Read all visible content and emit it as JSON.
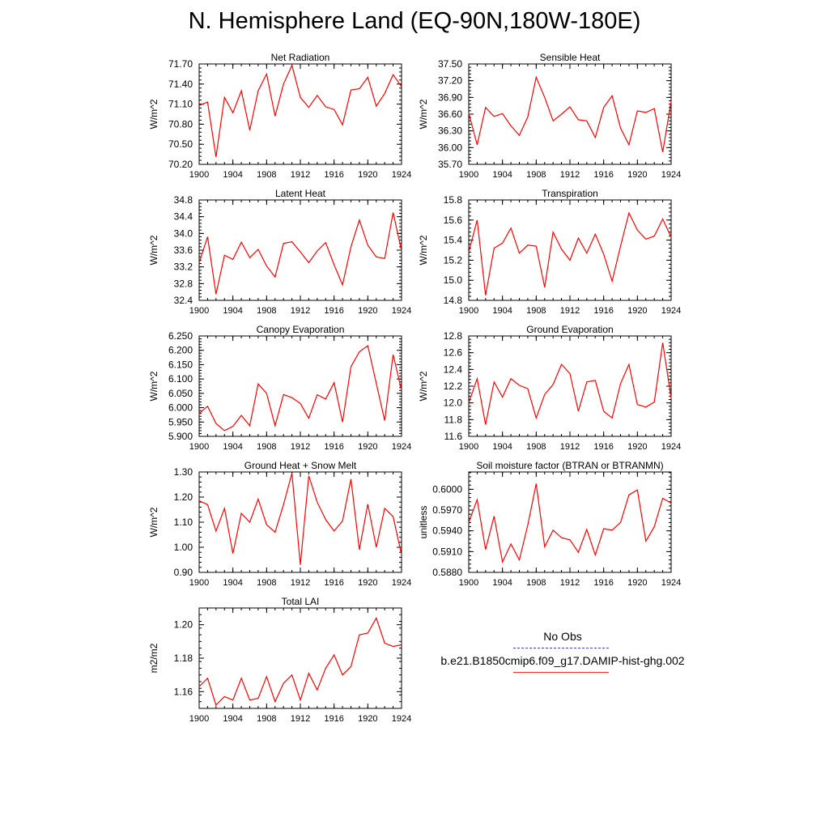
{
  "page": {
    "title": "N. Hemisphere Land (EQ-90N,180W-180E)"
  },
  "legend": {
    "entries": [
      {
        "label": "No Obs",
        "style": "dashed",
        "color": "#3c3cd0"
      },
      {
        "label": "b.e21.B1850cmip6.f09_g17.DAMIP-hist-ghg.002",
        "style": "solid",
        "color": "#ff2a2a"
      }
    ]
  },
  "chart_data": [
    {
      "type": "line",
      "title": "Net Radiation",
      "ylabel": "W/m^2",
      "ylim": [
        70.2,
        71.7
      ],
      "yticks": [
        "70.20",
        "70.50",
        "70.80",
        "71.10",
        "71.40",
        "71.70"
      ],
      "xlim": [
        1900,
        1924
      ],
      "xticks": [
        "1900",
        "1904",
        "1908",
        "1912",
        "1916",
        "1920",
        "1924"
      ],
      "series": [
        {
          "color": "#ff0000",
          "x": [
            1900,
            1901,
            1902,
            1903,
            1904,
            1905,
            1906,
            1907,
            1908,
            1909,
            1910,
            1911,
            1912,
            1913,
            1914,
            1915,
            1916,
            1917,
            1918,
            1919,
            1920,
            1921,
            1922,
            1923,
            1924
          ],
          "y": [
            71.08,
            71.13,
            70.31,
            71.2,
            70.97,
            71.3,
            70.71,
            71.3,
            71.55,
            70.92,
            71.4,
            71.68,
            71.2,
            71.05,
            71.23,
            71.06,
            71.02,
            70.79,
            71.31,
            71.33,
            71.5,
            71.07,
            71.26,
            71.54,
            71.36
          ]
        }
      ]
    },
    {
      "type": "line",
      "title": "Sensible Heat",
      "ylabel": "W/m^2",
      "ylim": [
        35.7,
        37.5
      ],
      "yticks": [
        "35.70",
        "36.00",
        "36.30",
        "36.60",
        "36.90",
        "37.20",
        "37.50"
      ],
      "xlim": [
        1900,
        1924
      ],
      "xticks": [
        "1900",
        "1904",
        "1908",
        "1912",
        "1916",
        "1920",
        "1924"
      ],
      "series": [
        {
          "color": "#ff0000",
          "x": [
            1900,
            1901,
            1902,
            1903,
            1904,
            1905,
            1906,
            1907,
            1908,
            1909,
            1910,
            1911,
            1912,
            1913,
            1914,
            1915,
            1916,
            1917,
            1918,
            1919,
            1920,
            1921,
            1922,
            1923,
            1924
          ],
          "y": [
            36.62,
            36.05,
            36.72,
            36.56,
            36.61,
            36.39,
            36.22,
            36.55,
            37.26,
            36.9,
            36.48,
            36.6,
            36.73,
            36.5,
            36.48,
            36.18,
            36.72,
            36.93,
            36.35,
            36.05,
            36.66,
            36.63,
            36.7,
            35.92,
            36.83
          ]
        }
      ]
    },
    {
      "type": "line",
      "title": "Latent Heat",
      "ylabel": "W/m^2",
      "ylim": [
        32.4,
        34.8
      ],
      "yticks": [
        "32.4",
        "32.8",
        "33.2",
        "33.6",
        "34.0",
        "34.4",
        "34.8"
      ],
      "xlim": [
        1900,
        1924
      ],
      "xticks": [
        "1900",
        "1904",
        "1908",
        "1912",
        "1916",
        "1920",
        "1924"
      ],
      "series": [
        {
          "color": "#ff0000",
          "x": [
            1900,
            1901,
            1902,
            1903,
            1904,
            1905,
            1906,
            1907,
            1908,
            1909,
            1910,
            1911,
            1912,
            1913,
            1914,
            1915,
            1916,
            1917,
            1918,
            1919,
            1920,
            1921,
            1922,
            1923,
            1924
          ],
          "y": [
            33.3,
            33.92,
            32.55,
            33.48,
            33.38,
            33.79,
            33.42,
            33.62,
            33.22,
            32.96,
            33.76,
            33.8,
            33.56,
            33.3,
            33.58,
            33.78,
            33.25,
            32.77,
            33.68,
            34.32,
            33.72,
            33.44,
            33.4,
            34.5,
            33.58
          ]
        }
      ]
    },
    {
      "type": "line",
      "title": "Transpiration",
      "ylabel": "W/m^2",
      "ylim": [
        14.8,
        15.8
      ],
      "yticks": [
        "14.8",
        "15.0",
        "15.2",
        "15.4",
        "15.6",
        "15.8"
      ],
      "xlim": [
        1900,
        1924
      ],
      "xticks": [
        "1900",
        "1904",
        "1908",
        "1912",
        "1916",
        "1920",
        "1924"
      ],
      "series": [
        {
          "color": "#ff0000",
          "x": [
            1900,
            1901,
            1902,
            1903,
            1904,
            1905,
            1906,
            1907,
            1908,
            1909,
            1910,
            1911,
            1912,
            1913,
            1914,
            1915,
            1916,
            1917,
            1918,
            1919,
            1920,
            1921,
            1922,
            1923,
            1924
          ],
          "y": [
            15.28,
            15.6,
            14.85,
            15.32,
            15.37,
            15.52,
            15.27,
            15.35,
            15.34,
            14.93,
            15.48,
            15.31,
            15.2,
            15.42,
            15.27,
            15.46,
            15.26,
            14.99,
            15.34,
            15.67,
            15.5,
            15.41,
            15.44,
            15.61,
            15.43
          ]
        }
      ]
    },
    {
      "type": "line",
      "title": "Canopy Evaporation",
      "ylabel": "W/m^2",
      "ylim": [
        5.9,
        6.25
      ],
      "yticks": [
        "5.900",
        "5.950",
        "6.000",
        "6.050",
        "6.100",
        "6.150",
        "6.200",
        "6.250"
      ],
      "xlim": [
        1900,
        1924
      ],
      "xticks": [
        "1900",
        "1904",
        "1908",
        "1912",
        "1916",
        "1920",
        "1924"
      ],
      "series": [
        {
          "color": "#ff0000",
          "x": [
            1900,
            1901,
            1902,
            1903,
            1904,
            1905,
            1906,
            1907,
            1908,
            1909,
            1910,
            1911,
            1912,
            1913,
            1914,
            1915,
            1916,
            1917,
            1918,
            1919,
            1920,
            1921,
            1922,
            1923,
            1924
          ],
          "y": [
            5.98,
            6.005,
            5.945,
            5.92,
            5.935,
            5.973,
            5.937,
            6.083,
            6.05,
            5.937,
            6.046,
            6.035,
            6.015,
            5.963,
            6.045,
            6.03,
            6.087,
            5.95,
            6.143,
            6.195,
            6.216,
            6.085,
            5.955,
            6.185,
            6.06
          ]
        }
      ]
    },
    {
      "type": "line",
      "title": "Ground Evaporation",
      "ylabel": "W/m^2",
      "ylim": [
        11.6,
        12.8
      ],
      "yticks": [
        "11.6",
        "11.8",
        "12.0",
        "12.2",
        "12.4",
        "12.6",
        "12.8"
      ],
      "xlim": [
        1900,
        1924
      ],
      "xticks": [
        "1900",
        "1904",
        "1908",
        "1912",
        "1916",
        "1920",
        "1924"
      ],
      "series": [
        {
          "color": "#ff0000",
          "x": [
            1900,
            1901,
            1902,
            1903,
            1904,
            1905,
            1906,
            1907,
            1908,
            1909,
            1910,
            1911,
            1912,
            1913,
            1914,
            1915,
            1916,
            1917,
            1918,
            1919,
            1920,
            1921,
            1922,
            1923,
            1924
          ],
          "y": [
            12.0,
            12.29,
            11.74,
            12.25,
            12.07,
            12.29,
            12.21,
            12.17,
            11.82,
            12.1,
            12.22,
            12.46,
            12.35,
            11.9,
            12.25,
            12.27,
            11.9,
            11.82,
            12.23,
            12.46,
            11.98,
            11.95,
            12.01,
            12.72,
            12.06
          ]
        }
      ]
    },
    {
      "type": "line",
      "title": "Ground Heat + Snow Melt",
      "ylabel": "W/m^2",
      "ylim": [
        0.9,
        1.3
      ],
      "yticks": [
        "0.90",
        "1.00",
        "1.10",
        "1.20",
        "1.30"
      ],
      "xlim": [
        1900,
        1924
      ],
      "xticks": [
        "1900",
        "1904",
        "1908",
        "1912",
        "1916",
        "1920",
        "1924"
      ],
      "series": [
        {
          "color": "#ff0000",
          "x": [
            1900,
            1901,
            1902,
            1903,
            1904,
            1905,
            1906,
            1907,
            1908,
            1909,
            1910,
            1911,
            1912,
            1913,
            1914,
            1915,
            1916,
            1917,
            1918,
            1919,
            1920,
            1921,
            1922,
            1923,
            1924
          ],
          "y": [
            1.185,
            1.17,
            1.065,
            1.155,
            0.975,
            1.135,
            1.1,
            1.192,
            1.09,
            1.06,
            1.17,
            1.295,
            0.93,
            1.285,
            1.18,
            1.11,
            1.065,
            1.105,
            1.272,
            0.99,
            1.172,
            1.0,
            1.155,
            1.122,
            0.97
          ]
        }
      ]
    },
    {
      "type": "line",
      "title": "Soil moisture factor (BTRAN or BTRANMN)",
      "ylabel": "unitless",
      "ylim": [
        0.588,
        0.6025
      ],
      "yticks": [
        "0.5880",
        "0.5910",
        "0.5940",
        "0.5970",
        "0.6000"
      ],
      "xlim": [
        1900,
        1924
      ],
      "xticks": [
        "1900",
        "1904",
        "1908",
        "1912",
        "1916",
        "1920",
        "1924"
      ],
      "series": [
        {
          "color": "#ff0000",
          "x": [
            1900,
            1901,
            1902,
            1903,
            1904,
            1905,
            1906,
            1907,
            1908,
            1909,
            1910,
            1911,
            1912,
            1913,
            1914,
            1915,
            1916,
            1917,
            1918,
            1919,
            1920,
            1921,
            1922,
            1923,
            1924
          ],
          "y": [
            0.5952,
            0.5985,
            0.5913,
            0.5961,
            0.5895,
            0.5921,
            0.5898,
            0.5948,
            0.6008,
            0.5917,
            0.5941,
            0.593,
            0.5927,
            0.5909,
            0.5942,
            0.5905,
            0.5943,
            0.5941,
            0.5952,
            0.5992,
            0.5999,
            0.5925,
            0.5946,
            0.5987,
            0.598
          ]
        }
      ]
    },
    {
      "type": "line",
      "title": "Total LAI",
      "ylabel": "m2/m2",
      "ylim": [
        1.15,
        1.21
      ],
      "yticks": [
        "1.16",
        "1.18",
        "1.20"
      ],
      "xlim": [
        1900,
        1924
      ],
      "xticks": [
        "1900",
        "1904",
        "1908",
        "1912",
        "1916",
        "1920",
        "1924"
      ],
      "series": [
        {
          "color": "#ff0000",
          "x": [
            1900,
            1901,
            1902,
            1903,
            1904,
            1905,
            1906,
            1907,
            1908,
            1909,
            1910,
            1911,
            1912,
            1913,
            1914,
            1915,
            1916,
            1917,
            1918,
            1919,
            1920,
            1921,
            1922,
            1923,
            1924
          ],
          "y": [
            1.163,
            1.168,
            1.152,
            1.157,
            1.155,
            1.168,
            1.155,
            1.156,
            1.169,
            1.154,
            1.165,
            1.17,
            1.155,
            1.171,
            1.161,
            1.174,
            1.182,
            1.17,
            1.175,
            1.194,
            1.195,
            1.204,
            1.189,
            1.187,
            1.188
          ]
        }
      ]
    }
  ]
}
